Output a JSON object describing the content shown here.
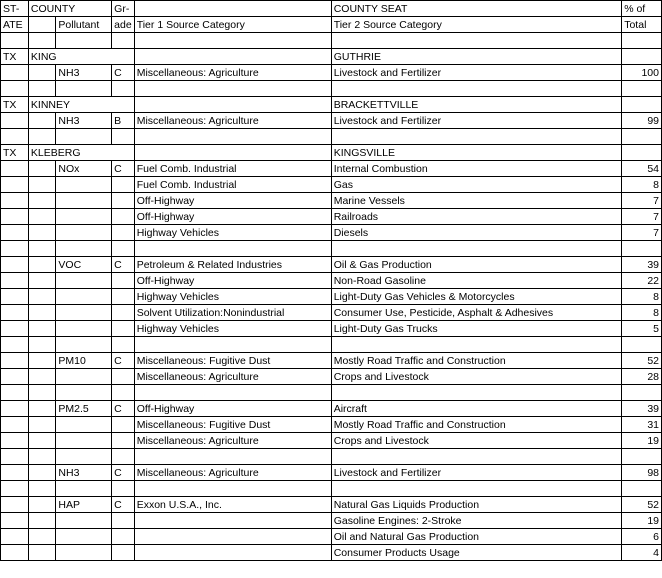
{
  "header": {
    "state": "ST-",
    "state2": "ATE",
    "county": "COUNTY",
    "pollutant": "Pollutant",
    "grade1": "Gr-",
    "grade2": "ade",
    "tier1": "Tier 1 Source Category",
    "tier2": "Tier 2 Source Category",
    "seat": "COUNTY SEAT",
    "pct1": "% of",
    "pct2": "Total"
  },
  "rows": [
    {
      "type": "blank"
    },
    {
      "type": "county",
      "state": "TX",
      "county": "KING",
      "seat": "GUTHRIE"
    },
    {
      "type": "data",
      "pollutant": "NH3",
      "grade": "C",
      "tier1": "Miscellaneous: Agriculture",
      "tier2": "Livestock and Fertilizer",
      "pct": "100"
    },
    {
      "type": "blank"
    },
    {
      "type": "county",
      "state": "TX",
      "county": "KINNEY",
      "seat": "BRACKETTVILLE"
    },
    {
      "type": "data",
      "pollutant": "NH3",
      "grade": "B",
      "tier1": "Miscellaneous: Agriculture",
      "tier2": "Livestock and Fertilizer",
      "pct": "99"
    },
    {
      "type": "blank"
    },
    {
      "type": "county",
      "state": "TX",
      "county": "KLEBERG",
      "seat": "KINGSVILLE"
    },
    {
      "type": "data",
      "pollutant": "NOx",
      "grade": "C",
      "tier1": "Fuel Comb. Industrial",
      "tier2": "Internal Combustion",
      "pct": "54"
    },
    {
      "type": "data",
      "tier1": "Fuel Comb. Industrial",
      "tier2": "Gas",
      "pct": "8"
    },
    {
      "type": "data",
      "tier1": "Off-Highway",
      "tier2": "Marine Vessels",
      "pct": "7"
    },
    {
      "type": "data",
      "tier1": "Off-Highway",
      "tier2": "Railroads",
      "pct": "7"
    },
    {
      "type": "data",
      "tier1": "Highway Vehicles",
      "tier2": "Diesels",
      "pct": "7"
    },
    {
      "type": "blank"
    },
    {
      "type": "data",
      "pollutant": "VOC",
      "grade": "C",
      "tier1": "Petroleum & Related Industries",
      "tier2": "Oil & Gas Production",
      "pct": "39"
    },
    {
      "type": "data",
      "tier1": "Off-Highway",
      "tier2": "Non-Road Gasoline",
      "pct": "22"
    },
    {
      "type": "data",
      "tier1": "Highway Vehicles",
      "tier2": "Light-Duty Gas Vehicles & Motorcycles",
      "pct": "8"
    },
    {
      "type": "data",
      "tier1": "Solvent Utilization:Nonindustrial",
      "tier2": "Consumer Use, Pesticide, Asphalt & Adhesives",
      "pct": "8"
    },
    {
      "type": "data",
      "tier1": "Highway Vehicles",
      "tier2": "Light-Duty Gas Trucks",
      "pct": "5"
    },
    {
      "type": "blank"
    },
    {
      "type": "data",
      "pollutant": "PM10",
      "grade": "C",
      "tier1": "Miscellaneous: Fugitive Dust",
      "tier2": "Mostly Road Traffic and Construction",
      "pct": "52"
    },
    {
      "type": "data",
      "tier1": "Miscellaneous: Agriculture",
      "tier2": "Crops and Livestock",
      "pct": "28"
    },
    {
      "type": "blank"
    },
    {
      "type": "data",
      "pollutant": "PM2.5",
      "grade": "C",
      "tier1": "Off-Highway",
      "tier2": "Aircraft",
      "pct": "39"
    },
    {
      "type": "data",
      "tier1": "Miscellaneous: Fugitive Dust",
      "tier2": "Mostly Road Traffic and Construction",
      "pct": "31"
    },
    {
      "type": "data",
      "tier1": "Miscellaneous: Agriculture",
      "tier2": "Crops and Livestock",
      "pct": "19"
    },
    {
      "type": "blank"
    },
    {
      "type": "data",
      "pollutant": "NH3",
      "grade": "C",
      "tier1": "Miscellaneous: Agriculture",
      "tier2": "Livestock and Fertilizer",
      "pct": "98"
    },
    {
      "type": "blank"
    },
    {
      "type": "data",
      "pollutant": "HAP",
      "grade": "C",
      "tier1": "Exxon U.S.A., Inc.",
      "tier2": "Natural Gas Liquids Production",
      "pct": "52"
    },
    {
      "type": "data",
      "tier2": "Gasoline Engines: 2-Stroke",
      "pct": "19"
    },
    {
      "type": "data",
      "tier2": "Oil and Natural Gas Production",
      "pct": "6"
    },
    {
      "type": "data",
      "tier2": "Consumer Products Usage",
      "pct": "4"
    }
  ]
}
